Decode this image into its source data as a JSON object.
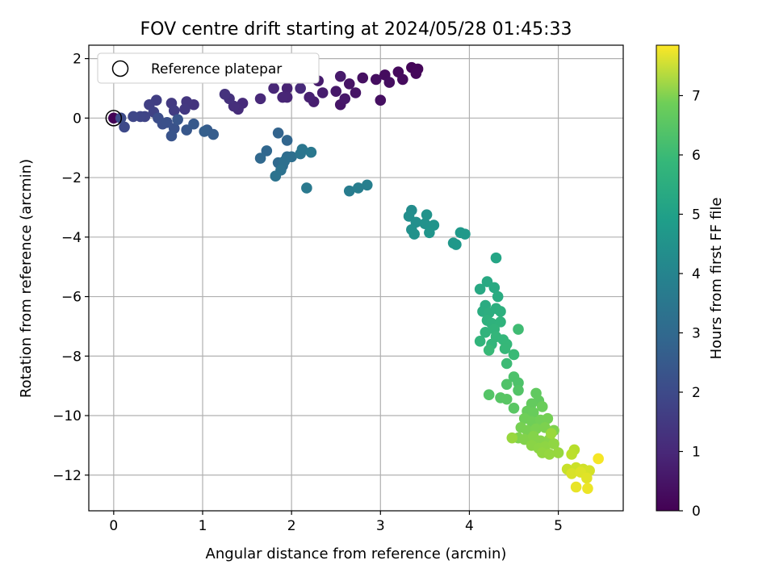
{
  "chart_data": {
    "type": "scatter",
    "title": "FOV centre drift starting at 2024/05/28 01:45:33",
    "xlabel": "Angular distance from reference (arcmin)",
    "ylabel": "Rotation from reference (arcmin)",
    "colorbar_label": "Hours from first FF file",
    "xlim": [
      -0.28,
      5.73
    ],
    "ylim": [
      -13.2,
      2.45
    ],
    "x_ticks": [
      0,
      1,
      2,
      3,
      4,
      5
    ],
    "y_ticks": [
      -12,
      -10,
      -8,
      -6,
      -4,
      -2,
      0,
      2
    ],
    "colorbar_range": [
      0,
      7.85
    ],
    "colorbar_ticks": [
      0,
      1,
      2,
      3,
      4,
      5,
      6,
      7
    ],
    "colormap": "viridis",
    "grid": true,
    "legend": {
      "position": "top-left",
      "label": "Reference platepar"
    },
    "reference_point": {
      "x": 0,
      "y": 0
    },
    "points": [
      {
        "x": 0.0,
        "y": 0.0,
        "t": 0.05
      },
      {
        "x": 3.35,
        "y": 1.7,
        "t": 0.1
      },
      {
        "x": 3.42,
        "y": 1.65,
        "t": 0.12
      },
      {
        "x": 3.4,
        "y": 1.5,
        "t": 0.15
      },
      {
        "x": 3.2,
        "y": 1.55,
        "t": 0.2
      },
      {
        "x": 3.25,
        "y": 1.3,
        "t": 0.22
      },
      {
        "x": 3.05,
        "y": 1.45,
        "t": 0.25
      },
      {
        "x": 3.1,
        "y": 1.2,
        "t": 0.28
      },
      {
        "x": 2.95,
        "y": 1.3,
        "t": 0.3
      },
      {
        "x": 3.0,
        "y": 0.6,
        "t": 0.32
      },
      {
        "x": 2.8,
        "y": 1.35,
        "t": 0.35
      },
      {
        "x": 2.65,
        "y": 1.15,
        "t": 0.4
      },
      {
        "x": 2.72,
        "y": 0.85,
        "t": 0.42
      },
      {
        "x": 2.55,
        "y": 0.45,
        "t": 0.45
      },
      {
        "x": 2.6,
        "y": 0.65,
        "t": 0.5
      },
      {
        "x": 2.5,
        "y": 0.9,
        "t": 0.52
      },
      {
        "x": 2.55,
        "y": 1.4,
        "t": 0.55
      },
      {
        "x": 2.3,
        "y": 1.25,
        "t": 0.6
      },
      {
        "x": 2.35,
        "y": 0.85,
        "t": 0.62
      },
      {
        "x": 2.25,
        "y": 0.55,
        "t": 0.65
      },
      {
        "x": 2.2,
        "y": 0.7,
        "t": 0.7
      },
      {
        "x": 2.05,
        "y": 1.4,
        "t": 0.72
      },
      {
        "x": 1.95,
        "y": 1.0,
        "t": 0.75
      },
      {
        "x": 1.95,
        "y": 0.7,
        "t": 0.8
      },
      {
        "x": 1.9,
        "y": 0.7,
        "t": 0.82
      },
      {
        "x": 1.8,
        "y": 1.0,
        "t": 0.85
      },
      {
        "x": 1.65,
        "y": 0.65,
        "t": 0.9
      },
      {
        "x": 2.1,
        "y": 1.0,
        "t": 0.92
      },
      {
        "x": 1.45,
        "y": 0.5,
        "t": 0.95
      },
      {
        "x": 1.4,
        "y": 0.3,
        "t": 1.0
      },
      {
        "x": 1.35,
        "y": 0.4,
        "t": 1.05
      },
      {
        "x": 1.3,
        "y": 0.65,
        "t": 1.1
      },
      {
        "x": 1.25,
        "y": 0.8,
        "t": 1.15
      },
      {
        "x": 0.9,
        "y": 0.45,
        "t": 1.2
      },
      {
        "x": 0.82,
        "y": 0.55,
        "t": 1.25
      },
      {
        "x": 0.8,
        "y": 0.3,
        "t": 1.3
      },
      {
        "x": 0.65,
        "y": 0.5,
        "t": 1.35
      },
      {
        "x": 0.68,
        "y": 0.25,
        "t": 1.4
      },
      {
        "x": 0.48,
        "y": 0.6,
        "t": 1.45
      },
      {
        "x": 0.4,
        "y": 0.45,
        "t": 1.5
      },
      {
        "x": 0.45,
        "y": 0.2,
        "t": 1.55
      },
      {
        "x": 0.35,
        "y": 0.05,
        "t": 1.6
      },
      {
        "x": 0.3,
        "y": 0.05,
        "t": 1.65
      },
      {
        "x": 0.22,
        "y": 0.05,
        "t": 1.7
      },
      {
        "x": 0.12,
        "y": -0.3,
        "t": 1.75
      },
      {
        "x": 0.08,
        "y": 0.0,
        "t": 1.8
      },
      {
        "x": 0.5,
        "y": 0.0,
        "t": 1.85
      },
      {
        "x": 0.55,
        "y": -0.2,
        "t": 1.9
      },
      {
        "x": 0.6,
        "y": -0.15,
        "t": 1.95
      },
      {
        "x": 0.68,
        "y": -0.35,
        "t": 2.0
      },
      {
        "x": 0.65,
        "y": -0.6,
        "t": 2.05
      },
      {
        "x": 0.72,
        "y": -0.05,
        "t": 2.1
      },
      {
        "x": 0.82,
        "y": -0.4,
        "t": 2.15
      },
      {
        "x": 0.9,
        "y": -0.2,
        "t": 2.2
      },
      {
        "x": 1.05,
        "y": -0.4,
        "t": 2.25
      },
      {
        "x": 1.12,
        "y": -0.55,
        "t": 2.3
      },
      {
        "x": 1.02,
        "y": -0.45,
        "t": 2.35
      },
      {
        "x": 1.85,
        "y": -0.5,
        "t": 2.5
      },
      {
        "x": 1.95,
        "y": -0.75,
        "t": 2.55
      },
      {
        "x": 1.72,
        "y": -1.1,
        "t": 2.6
      },
      {
        "x": 1.65,
        "y": -1.35,
        "t": 2.65
      },
      {
        "x": 1.85,
        "y": -1.5,
        "t": 2.7
      },
      {
        "x": 1.9,
        "y": -1.6,
        "t": 2.75
      },
      {
        "x": 1.95,
        "y": -1.3,
        "t": 2.8
      },
      {
        "x": 2.0,
        "y": -1.3,
        "t": 2.85
      },
      {
        "x": 1.92,
        "y": -1.45,
        "t": 2.9
      },
      {
        "x": 1.88,
        "y": -1.75,
        "t": 2.95
      },
      {
        "x": 1.82,
        "y": -1.95,
        "t": 3.0
      },
      {
        "x": 2.1,
        "y": -1.2,
        "t": 3.05
      },
      {
        "x": 2.12,
        "y": -1.05,
        "t": 3.1
      },
      {
        "x": 2.22,
        "y": -1.15,
        "t": 3.15
      },
      {
        "x": 2.17,
        "y": -2.35,
        "t": 3.2
      },
      {
        "x": 2.65,
        "y": -2.45,
        "t": 3.3
      },
      {
        "x": 2.75,
        "y": -2.35,
        "t": 3.35
      },
      {
        "x": 2.85,
        "y": -2.25,
        "t": 3.4
      },
      {
        "x": 3.35,
        "y": -3.1,
        "t": 3.8
      },
      {
        "x": 3.32,
        "y": -3.3,
        "t": 3.85
      },
      {
        "x": 3.4,
        "y": -3.5,
        "t": 3.9
      },
      {
        "x": 3.35,
        "y": -3.75,
        "t": 3.92
      },
      {
        "x": 3.38,
        "y": -3.9,
        "t": 3.95
      },
      {
        "x": 3.5,
        "y": -3.55,
        "t": 4.0
      },
      {
        "x": 3.52,
        "y": -3.25,
        "t": 4.02
      },
      {
        "x": 3.6,
        "y": -3.6,
        "t": 4.05
      },
      {
        "x": 3.55,
        "y": -3.85,
        "t": 4.08
      },
      {
        "x": 3.82,
        "y": -4.2,
        "t": 4.15
      },
      {
        "x": 3.85,
        "y": -4.25,
        "t": 4.18
      },
      {
        "x": 3.9,
        "y": -3.85,
        "t": 4.2
      },
      {
        "x": 3.95,
        "y": -3.9,
        "t": 4.22
      },
      {
        "x": 4.3,
        "y": -4.7,
        "t": 4.6
      },
      {
        "x": 4.12,
        "y": -5.75,
        "t": 4.7
      },
      {
        "x": 4.2,
        "y": -5.5,
        "t": 4.72
      },
      {
        "x": 4.28,
        "y": -5.7,
        "t": 4.75
      },
      {
        "x": 4.32,
        "y": -6.0,
        "t": 4.8
      },
      {
        "x": 4.18,
        "y": -6.3,
        "t": 4.82
      },
      {
        "x": 4.15,
        "y": -6.5,
        "t": 4.85
      },
      {
        "x": 4.22,
        "y": -6.55,
        "t": 4.9
      },
      {
        "x": 4.3,
        "y": -6.4,
        "t": 4.92
      },
      {
        "x": 4.35,
        "y": -6.5,
        "t": 4.95
      },
      {
        "x": 4.2,
        "y": -6.8,
        "t": 5.0
      },
      {
        "x": 4.25,
        "y": -6.9,
        "t": 5.02
      },
      {
        "x": 4.35,
        "y": -6.85,
        "t": 5.05
      },
      {
        "x": 4.18,
        "y": -7.2,
        "t": 5.08
      },
      {
        "x": 4.28,
        "y": -7.1,
        "t": 5.1
      },
      {
        "x": 4.12,
        "y": -7.5,
        "t": 5.12
      },
      {
        "x": 4.25,
        "y": -7.6,
        "t": 5.15
      },
      {
        "x": 4.3,
        "y": -7.35,
        "t": 5.18
      },
      {
        "x": 4.38,
        "y": -7.45,
        "t": 5.2
      },
      {
        "x": 4.42,
        "y": -7.6,
        "t": 5.22
      },
      {
        "x": 4.4,
        "y": -7.75,
        "t": 5.25
      },
      {
        "x": 4.22,
        "y": -7.8,
        "t": 5.28
      },
      {
        "x": 4.5,
        "y": -7.95,
        "t": 5.3
      },
      {
        "x": 4.42,
        "y": -8.25,
        "t": 5.35
      },
      {
        "x": 4.55,
        "y": -7.1,
        "t": 5.4
      },
      {
        "x": 4.5,
        "y": -8.7,
        "t": 5.6
      },
      {
        "x": 4.55,
        "y": -8.9,
        "t": 5.62
      },
      {
        "x": 4.42,
        "y": -8.95,
        "t": 5.65
      },
      {
        "x": 4.55,
        "y": -9.15,
        "t": 5.7
      },
      {
        "x": 4.22,
        "y": -9.3,
        "t": 5.72
      },
      {
        "x": 4.35,
        "y": -9.4,
        "t": 5.75
      },
      {
        "x": 4.42,
        "y": -9.45,
        "t": 5.78
      },
      {
        "x": 4.5,
        "y": -9.75,
        "t": 5.8
      },
      {
        "x": 4.75,
        "y": -9.25,
        "t": 5.9
      },
      {
        "x": 4.78,
        "y": -9.5,
        "t": 5.92
      },
      {
        "x": 4.7,
        "y": -9.6,
        "t": 5.95
      },
      {
        "x": 4.65,
        "y": -9.85,
        "t": 6.0
      },
      {
        "x": 4.72,
        "y": -9.9,
        "t": 6.02
      },
      {
        "x": 4.82,
        "y": -9.7,
        "t": 6.05
      },
      {
        "x": 4.62,
        "y": -10.1,
        "t": 6.1
      },
      {
        "x": 4.7,
        "y": -10.2,
        "t": 6.12
      },
      {
        "x": 4.8,
        "y": -10.15,
        "t": 6.15
      },
      {
        "x": 4.88,
        "y": -10.1,
        "t": 6.18
      },
      {
        "x": 4.58,
        "y": -10.4,
        "t": 6.2
      },
      {
        "x": 4.65,
        "y": -10.5,
        "t": 6.22
      },
      {
        "x": 4.75,
        "y": -10.45,
        "t": 6.25
      },
      {
        "x": 4.85,
        "y": -10.4,
        "t": 6.28
      },
      {
        "x": 4.95,
        "y": -10.5,
        "t": 6.3
      },
      {
        "x": 4.55,
        "y": -10.75,
        "t": 6.32
      },
      {
        "x": 4.62,
        "y": -10.8,
        "t": 6.35
      },
      {
        "x": 4.72,
        "y": -10.7,
        "t": 6.38
      },
      {
        "x": 4.8,
        "y": -10.85,
        "t": 6.4
      },
      {
        "x": 4.9,
        "y": -10.8,
        "t": 6.42
      },
      {
        "x": 4.7,
        "y": -11.0,
        "t": 6.45
      },
      {
        "x": 4.78,
        "y": -11.1,
        "t": 6.48
      },
      {
        "x": 4.85,
        "y": -11.05,
        "t": 6.5
      },
      {
        "x": 4.95,
        "y": -10.95,
        "t": 6.52
      },
      {
        "x": 4.82,
        "y": -11.25,
        "t": 6.55
      },
      {
        "x": 4.9,
        "y": -11.3,
        "t": 6.58
      },
      {
        "x": 5.0,
        "y": -11.25,
        "t": 6.6
      },
      {
        "x": 4.48,
        "y": -10.75,
        "t": 6.62
      },
      {
        "x": 4.92,
        "y": -10.6,
        "t": 6.65
      },
      {
        "x": 5.18,
        "y": -11.15,
        "t": 7.0
      },
      {
        "x": 5.15,
        "y": -11.3,
        "t": 7.05
      },
      {
        "x": 5.1,
        "y": -11.8,
        "t": 7.2
      },
      {
        "x": 5.2,
        "y": -11.75,
        "t": 7.25
      },
      {
        "x": 5.28,
        "y": -11.8,
        "t": 7.3
      },
      {
        "x": 5.35,
        "y": -11.85,
        "t": 7.35
      },
      {
        "x": 5.15,
        "y": -11.95,
        "t": 7.4
      },
      {
        "x": 5.25,
        "y": -11.9,
        "t": 7.45
      },
      {
        "x": 5.32,
        "y": -12.1,
        "t": 7.5
      },
      {
        "x": 5.2,
        "y": -12.4,
        "t": 7.6
      },
      {
        "x": 5.33,
        "y": -12.45,
        "t": 7.65
      },
      {
        "x": 5.45,
        "y": -11.45,
        "t": 7.75
      }
    ]
  }
}
